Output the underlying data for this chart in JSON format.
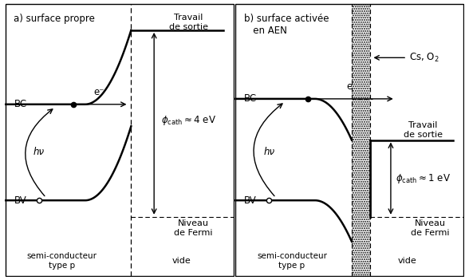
{
  "title_a": "a) surface propre",
  "title_b": "b) surface activée\n   en AEN",
  "label_BC": "BC",
  "label_BV": "BV",
  "label_hv": "hν",
  "label_eminus": "e⁻",
  "label_phi_a": "$\\phi_{\\mathrm{cath}} \\approx 4\\ \\mathrm{eV}$",
  "label_phi_b": "$\\phi_{\\mathrm{cath}} \\approx 1\\ \\mathrm{eV}$",
  "label_travail": "Travail\nde sortie",
  "label_fermi": "Niveau\nde Fermi",
  "label_vide": "vide",
  "label_semi": "semi-conducteur\ntype p",
  "label_CsO2": "Cs, O$_2$",
  "bg_color": "#ffffff",
  "line_color": "#000000"
}
